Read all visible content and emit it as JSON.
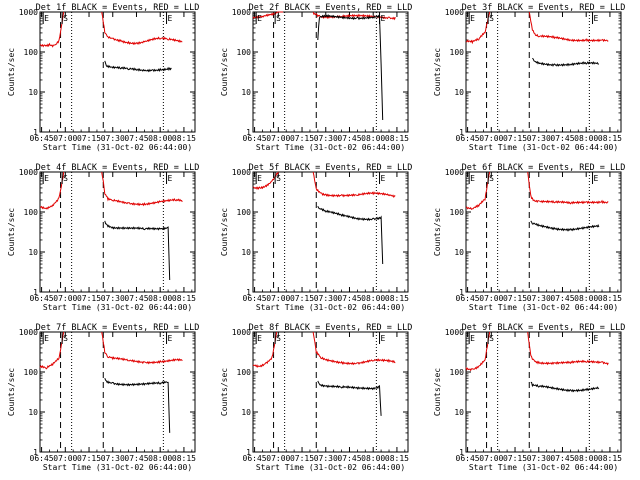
{
  "chart_data": [
    {
      "type": "line",
      "title": "Det 1f BLACK = Events, RED = LLD",
      "xlabel": "Start Time (31-Oct-02 06:44:00)",
      "ylabel": "Counts/sec",
      "yscale": "log",
      "ylim": [
        1,
        1000
      ],
      "xticks": [
        "06:45",
        "07:00",
        "07:15",
        "07:30",
        "07:45",
        "08:00",
        "08:15"
      ],
      "yticks": [
        "1",
        "10",
        "100",
        "1000"
      ],
      "markers": [
        "E",
        "S",
        "E"
      ],
      "series": [
        {
          "color": "#e00000",
          "segments": [
            {
              "x": [
                "06:44",
                "06:47",
                "06:50",
                "06:53",
                "06:56",
                "06:59"
              ],
              "y": [
                155,
                150,
                160,
                150,
                200,
                1000
              ]
            },
            {
              "x": [
                "07:23",
                "07:25",
                "07:27",
                "07:30",
                "07:35",
                "07:40",
                "07:45",
                "07:50",
                "07:55",
                "08:00",
                "08:05",
                "08:10",
                "08:14"
              ],
              "y": [
                1000,
                300,
                240,
                220,
                200,
                180,
                170,
                180,
                200,
                210,
                200,
                190,
                180
              ]
            }
          ]
        },
        {
          "color": "#000000",
          "segments": [
            {
              "x": [
                "07:25",
                "07:26",
                "07:30",
                "07:35",
                "07:40",
                "07:45",
                "07:50",
                "07:55",
                "08:00",
                "08:05",
                "08:07"
              ],
              "y": [
                60,
                45,
                40,
                38,
                36,
                35,
                34,
                36,
                38,
                40,
                40
              ]
            }
          ]
        }
      ]
    },
    {
      "type": "line",
      "title": "Det 2f BLACK = Events, RED = LLD",
      "xlabel": "Start Time (31-Oct-02 06:44:00)",
      "ylabel": "Counts/sec",
      "yscale": "log",
      "ylim": [
        1,
        1000
      ],
      "xticks": [
        "06:45",
        "07:00",
        "07:15",
        "07:30",
        "07:45",
        "08:00",
        "08:15"
      ],
      "yticks": [
        "1",
        "10",
        "100",
        "1000"
      ],
      "markers": [
        "E",
        "S",
        "E"
      ],
      "series": [
        {
          "color": "#e00000",
          "segments": [
            {
              "x": [
                "06:44",
                "06:50",
                "06:54",
                "06:58",
                "07:00",
                "07:03"
              ],
              "y": [
                760,
                780,
                820,
                860,
                1000,
                1000
              ]
            },
            {
              "x": [
                "07:22",
                "07:24",
                "07:26",
                "07:30",
                "07:40",
                "07:50",
                "08:00",
                "08:10",
                "08:14"
              ],
              "y": [
                1000,
                900,
                820,
                780,
                760,
                760,
                770,
                750,
                740
              ]
            }
          ]
        },
        {
          "color": "#000000",
          "segments": [
            {
              "x": [
                "07:25",
                "07:26",
                "07:30",
                "07:40",
                "07:50",
                "08:00",
                "08:04",
                "08:05",
                "08:06"
              ],
              "y": [
                200,
                700,
                760,
                750,
                740,
                750,
                760,
                50,
                2
              ]
            }
          ]
        }
      ]
    },
    {
      "type": "line",
      "title": "Det 3f BLACK = Events, RED = LLD",
      "xlabel": "Start Time (31-Oct-02 06:44:00)",
      "ylabel": "Counts/sec",
      "yscale": "log",
      "ylim": [
        1,
        1000
      ],
      "xticks": [
        "06:45",
        "07:00",
        "07:15",
        "07:30",
        "07:45",
        "08:00",
        "08:15"
      ],
      "yticks": [
        "1",
        "10",
        "100",
        "1000"
      ],
      "markers": [
        "E",
        "S",
        "E"
      ],
      "series": [
        {
          "color": "#e00000",
          "segments": [
            {
              "x": [
                "06:44",
                "06:48",
                "06:52",
                "06:56",
                "06:59"
              ],
              "y": [
                180,
                170,
                200,
                300,
                1000
              ]
            },
            {
              "x": [
                "07:24",
                "07:26",
                "07:28",
                "07:30",
                "07:40",
                "07:50",
                "08:00",
                "08:10",
                "08:14"
              ],
              "y": [
                1000,
                350,
                260,
                240,
                220,
                200,
                210,
                200,
                190
              ]
            }
          ]
        },
        {
          "color": "#000000",
          "segments": [
            {
              "x": [
                "07:26",
                "07:27",
                "07:30",
                "07:40",
                "07:50",
                "08:00",
                "08:08"
              ],
              "y": [
                70,
                60,
                55,
                50,
                48,
                50,
                50
              ]
            }
          ]
        }
      ]
    },
    {
      "type": "line",
      "title": "Det 4f BLACK = Events, RED = LLD",
      "xlabel": "Start Time (31-Oct-02 06:44:00)",
      "ylabel": "Counts/sec",
      "yscale": "log",
      "ylim": [
        1,
        1000
      ],
      "xticks": [
        "06:45",
        "07:00",
        "07:15",
        "07:30",
        "07:45",
        "08:00",
        "08:15"
      ],
      "yticks": [
        "1",
        "10",
        "100",
        "1000"
      ],
      "markers": [
        "E",
        "S",
        "E"
      ],
      "series": [
        {
          "color": "#e00000",
          "segments": [
            {
              "x": [
                "06:44",
                "06:48",
                "06:52",
                "06:56",
                "06:59"
              ],
              "y": [
                130,
                120,
                150,
                230,
                1000
              ]
            },
            {
              "x": [
                "07:23",
                "07:25",
                "07:27",
                "07:30",
                "07:40",
                "07:50",
                "08:00",
                "08:10",
                "08:14"
              ],
              "y": [
                1000,
                280,
                200,
                190,
                170,
                165,
                180,
                190,
                180
              ]
            }
          ]
        },
        {
          "color": "#000000",
          "segments": [
            {
              "x": [
                "07:25",
                "07:26",
                "07:30",
                "07:40",
                "07:50",
                "08:00",
                "08:05",
                "08:06"
              ],
              "y": [
                60,
                50,
                42,
                38,
                36,
                38,
                42,
                2
              ]
            }
          ]
        }
      ]
    },
    {
      "type": "line",
      "title": "Det 5f BLACK = Events, RED = LLD",
      "xlabel": "Start Time (31-Oct-02 06:44:00)",
      "ylabel": "Counts/sec",
      "yscale": "log",
      "ylim": [
        1,
        1000
      ],
      "xticks": [
        "06:45",
        "07:00",
        "07:15",
        "07:30",
        "07:45",
        "08:00",
        "08:15"
      ],
      "yticks": [
        "1",
        "10",
        "100",
        "1000"
      ],
      "markers": [
        "E",
        "S",
        "E"
      ],
      "series": [
        {
          "color": "#e00000",
          "segments": [
            {
              "x": [
                "06:44",
                "06:48",
                "06:52",
                "06:56",
                "07:00"
              ],
              "y": [
                430,
                420,
                460,
                600,
                1000
              ]
            },
            {
              "x": [
                "07:22",
                "07:24",
                "07:27",
                "07:30",
                "07:40",
                "07:50",
                "08:00",
                "08:10",
                "08:14"
              ],
              "y": [
                1000,
                380,
                300,
                280,
                270,
                260,
                280,
                270,
                250
              ]
            }
          ]
        },
        {
          "color": "#000000",
          "segments": [
            {
              "x": [
                "07:25",
                "07:26",
                "07:30",
                "07:40",
                "07:50",
                "08:00",
                "08:05",
                "08:06"
              ],
              "y": [
                140,
                120,
                100,
                80,
                70,
                70,
                75,
                5
              ]
            }
          ]
        }
      ]
    },
    {
      "type": "line",
      "title": "Det 6f BLACK = Events, RED = LLD",
      "xlabel": "Start Time (31-Oct-02 06:44:00)",
      "ylabel": "Counts/sec",
      "yscale": "log",
      "ylim": [
        1,
        1000
      ],
      "xticks": [
        "06:45",
        "07:00",
        "07:15",
        "07:30",
        "07:45",
        "08:00",
        "08:15"
      ],
      "yticks": [
        "1",
        "10",
        "100",
        "1000"
      ],
      "markers": [
        "E",
        "S",
        "E"
      ],
      "series": [
        {
          "color": "#e00000",
          "segments": [
            {
              "x": [
                "06:44",
                "06:48",
                "06:52",
                "06:56",
                "06:59"
              ],
              "y": [
                130,
                120,
                140,
                200,
                1000
              ]
            },
            {
              "x": [
                "07:23",
                "07:25",
                "07:27",
                "07:30",
                "07:40",
                "07:50",
                "08:00",
                "08:10",
                "08:14"
              ],
              "y": [
                1000,
                260,
                200,
                190,
                170,
                160,
                180,
                190,
                180
              ]
            }
          ]
        },
        {
          "color": "#000000",
          "segments": [
            {
              "x": [
                "07:25",
                "07:26",
                "07:30",
                "07:40",
                "07:50",
                "08:00",
                "08:08"
              ],
              "y": [
                60,
                50,
                45,
                40,
                38,
                40,
                42
              ]
            }
          ]
        }
      ]
    },
    {
      "type": "line",
      "title": "Det 7f BLACK = Events, RED = LLD",
      "xlabel": "Start Time (31-Oct-02 06:44:00)",
      "ylabel": "Counts/sec",
      "yscale": "log",
      "ylim": [
        1,
        1000
      ],
      "xticks": [
        "06:45",
        "07:00",
        "07:15",
        "07:30",
        "07:45",
        "08:00",
        "08:15"
      ],
      "yticks": [
        "1",
        "10",
        "100",
        "1000"
      ],
      "markers": [
        "E",
        "S",
        "E"
      ],
      "series": [
        {
          "color": "#e00000",
          "segments": [
            {
              "x": [
                "06:44",
                "06:48",
                "06:52",
                "06:56",
                "06:59"
              ],
              "y": [
                130,
                120,
                150,
                220,
                1000
              ]
            },
            {
              "x": [
                "07:23",
                "07:25",
                "07:27",
                "07:30",
                "07:40",
                "07:50",
                "08:00",
                "08:10",
                "08:14"
              ],
              "y": [
                1000,
                300,
                230,
                210,
                190,
                180,
                190,
                200,
                190
              ]
            }
          ]
        },
        {
          "color": "#000000",
          "segments": [
            {
              "x": [
                "07:25",
                "07:26",
                "07:30",
                "07:40",
                "07:50",
                "08:00",
                "08:05",
                "08:06"
              ],
              "y": [
                70,
                60,
                55,
                50,
                48,
                50,
                55,
                3
              ]
            }
          ]
        }
      ]
    },
    {
      "type": "line",
      "title": "Det 8f BLACK = Events, RED = LLD",
      "xlabel": "Start Time (31-Oct-02 06:44:00)",
      "ylabel": "Counts/sec",
      "yscale": "log",
      "ylim": [
        1,
        1000
      ],
      "xticks": [
        "06:45",
        "07:00",
        "07:15",
        "07:30",
        "07:45",
        "08:00",
        "08:15"
      ],
      "yticks": [
        "1",
        "10",
        "100",
        "1000"
      ],
      "markers": [
        "E",
        "S",
        "E"
      ],
      "series": [
        {
          "color": "#e00000",
          "segments": [
            {
              "x": [
                "06:44",
                "06:48",
                "06:52",
                "06:56",
                "06:59"
              ],
              "y": [
                150,
                140,
                170,
                240,
                1000
              ]
            },
            {
              "x": [
                "07:22",
                "07:24",
                "07:27",
                "07:30",
                "07:40",
                "07:50",
                "08:00",
                "08:10",
                "08:14"
              ],
              "y": [
                1000,
                300,
                220,
                200,
                180,
                170,
                190,
                180,
                170
              ]
            }
          ]
        },
        {
          "color": "#000000",
          "segments": [
            {
              "x": [
                "07:25",
                "07:26",
                "07:30",
                "07:40",
                "07:50",
                "08:00",
                "08:04",
                "08:05"
              ],
              "y": [
                60,
                50,
                45,
                40,
                38,
                40,
                45,
                8
              ]
            }
          ]
        }
      ]
    },
    {
      "type": "line",
      "title": "Det 9f BLACK = Events, RED = LLD",
      "xlabel": "Start Time (31-Oct-02 06:44:00)",
      "ylabel": "Counts/sec",
      "yscale": "log",
      "ylim": [
        1,
        1000
      ],
      "xticks": [
        "06:45",
        "07:00",
        "07:15",
        "07:30",
        "07:45",
        "08:00",
        "08:15"
      ],
      "yticks": [
        "1",
        "10",
        "100",
        "1000"
      ],
      "markers": [
        "E",
        "S",
        "E"
      ],
      "series": [
        {
          "color": "#e00000",
          "segments": [
            {
              "x": [
                "06:44",
                "06:48",
                "06:52",
                "06:56",
                "06:59"
              ],
              "y": [
                130,
                120,
                140,
                200,
                1000
              ]
            },
            {
              "x": [
                "07:23",
                "07:25",
                "07:27",
                "07:30",
                "07:40",
                "07:50",
                "08:00",
                "08:10",
                "08:14"
              ],
              "y": [
                1000,
                260,
                200,
                180,
                170,
                165,
                175,
                180,
                170
              ]
            }
          ]
        },
        {
          "color": "#000000",
          "segments": [
            {
              "x": [
                "07:25",
                "07:26",
                "07:30",
                "07:40",
                "07:50",
                "08:00",
                "08:08"
              ],
              "y": [
                55,
                45,
                42,
                38,
                36,
                38,
                40
              ]
            }
          ]
        }
      ]
    }
  ]
}
